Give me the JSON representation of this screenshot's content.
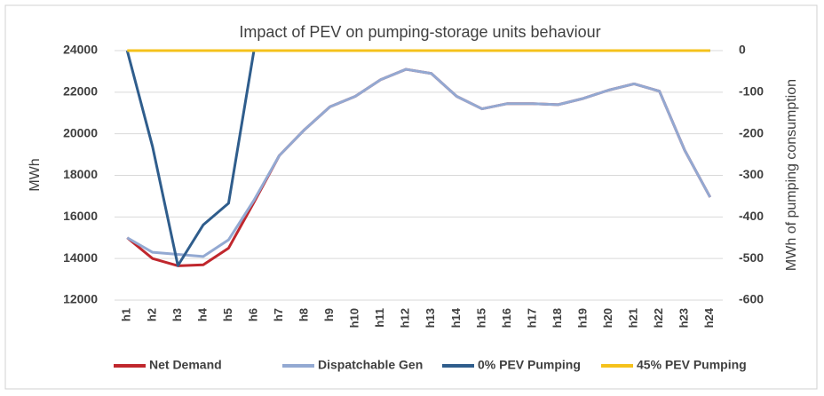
{
  "chart_data": {
    "type": "line",
    "title": "Impact of PEV on pumping-storage units behaviour",
    "ylabel": "MWh",
    "y2label": "MWh of pumping consumption",
    "categories": [
      "h1",
      "h2",
      "h3",
      "h4",
      "h5",
      "h6",
      "h7",
      "h8",
      "h9",
      "h10",
      "h11",
      "h12",
      "h13",
      "h14",
      "h15",
      "h16",
      "h17",
      "h18",
      "h19",
      "h20",
      "h21",
      "h22",
      "h23",
      "h24"
    ],
    "series": [
      {
        "name": "Net Demand",
        "color": "#c0272d",
        "values": [
          15000,
          14000,
          13650,
          13700,
          14500,
          16700,
          18950,
          20200,
          21300,
          21800,
          22600,
          23100,
          22900,
          21800,
          21200,
          21450,
          21450,
          21400,
          21700,
          22100,
          22400,
          22050,
          19200,
          16950
        ]
      },
      {
        "name": "Dispatchable Gen",
        "color": "#93a9d2",
        "values": [
          15000,
          14300,
          14200,
          14100,
          14900,
          16800,
          18950,
          20200,
          21300,
          21800,
          22600,
          23100,
          22900,
          21800,
          21200,
          21450,
          21450,
          21400,
          21700,
          22100,
          22400,
          22050,
          19200,
          16950
        ]
      },
      {
        "name": "0% PEV Pumping",
        "color": "#2f5d8c",
        "axis": "y2",
        "values": [
          0,
          -231,
          -517,
          -419,
          -367,
          0,
          0,
          0,
          0,
          0,
          0,
          0,
          0,
          0,
          0,
          0,
          0,
          0,
          0,
          0,
          0,
          0,
          0,
          0
        ]
      },
      {
        "name": "45% PEV Pumping",
        "color": "#f5c21b",
        "axis": "y2",
        "values": [
          0,
          0,
          0,
          0,
          0,
          0,
          0,
          0,
          0,
          0,
          0,
          0,
          0,
          0,
          0,
          0,
          0,
          0,
          0,
          0,
          0,
          0,
          0,
          0
        ]
      }
    ],
    "ylim": [
      12000,
      24000
    ],
    "yticks": [
      12000,
      14000,
      16000,
      18000,
      20000,
      22000,
      24000
    ],
    "y2lim": [
      -600,
      0
    ],
    "y2ticks": [
      -600,
      -500,
      -400,
      -300,
      -200,
      -100,
      0
    ],
    "grid": true,
    "legend": "bottom"
  }
}
